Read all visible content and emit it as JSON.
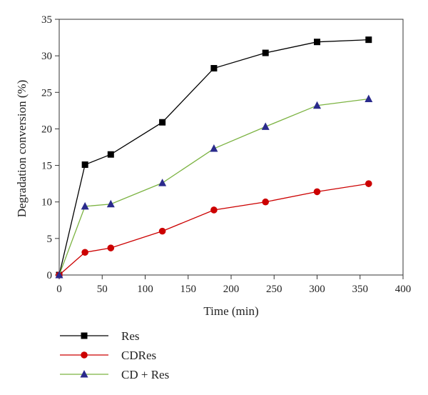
{
  "chart_data": {
    "type": "line",
    "title": "",
    "xlabel": "Time (min)",
    "ylabel": "Degradation conversion (%)",
    "xlim": [
      0,
      400
    ],
    "ylim": [
      0,
      35
    ],
    "xticks": [
      0,
      50,
      100,
      150,
      200,
      250,
      300,
      350,
      400
    ],
    "yticks": [
      0,
      5,
      10,
      15,
      20,
      25,
      30,
      35
    ],
    "grid": false,
    "legend_position": "bottom-left",
    "series": [
      {
        "name": "Res",
        "color": "#000000",
        "marker": "square",
        "x": [
          0,
          30,
          60,
          120,
          180,
          240,
          300,
          360
        ],
        "y": [
          0,
          15.1,
          16.5,
          20.9,
          28.3,
          30.4,
          31.9,
          32.2
        ]
      },
      {
        "name": "CDRes",
        "color": "#cc0000",
        "marker": "circle",
        "x": [
          0,
          30,
          60,
          120,
          180,
          240,
          300,
          360
        ],
        "y": [
          0,
          3.1,
          3.7,
          6.0,
          8.9,
          10.0,
          11.4,
          12.5
        ]
      },
      {
        "name": "CD + Res",
        "color": "#7cb342",
        "marker": "triangle",
        "marker_color": "#2a2a8c",
        "x": [
          0,
          30,
          60,
          120,
          180,
          240,
          300,
          360
        ],
        "y": [
          0,
          9.4,
          9.7,
          12.6,
          17.3,
          20.3,
          23.2,
          24.1
        ]
      }
    ]
  }
}
